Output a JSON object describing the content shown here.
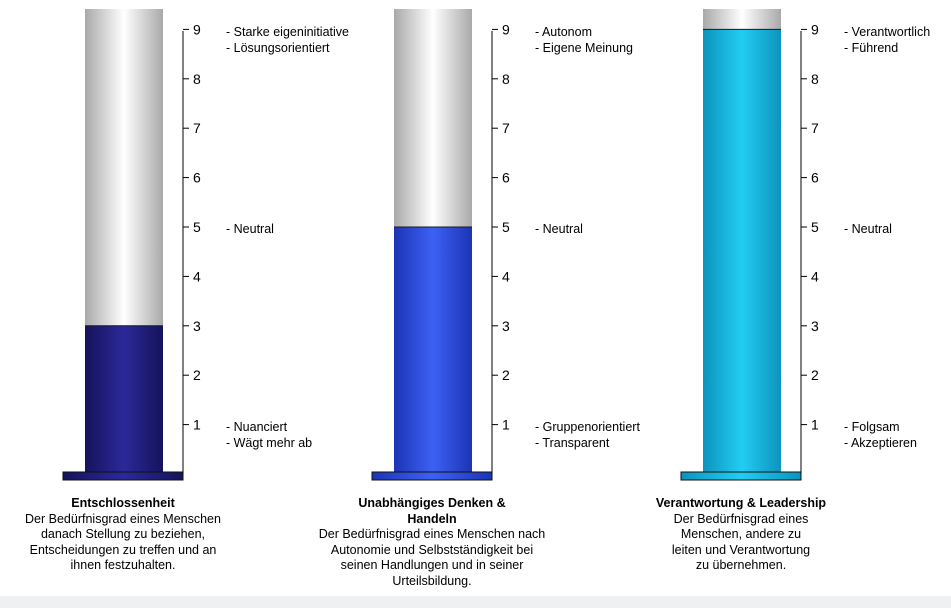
{
  "chart_data": [
    {
      "type": "bar",
      "title": "Entschlossenheit",
      "description": "Der Bedürfnisgrad eines Menschen danach Stellung zu beziehen, Entscheidungen zu treffen und an ihnen festzuhalten.",
      "value": 3,
      "ylim": [
        0,
        9
      ],
      "ticks": [
        1,
        2,
        3,
        4,
        5,
        6,
        7,
        8,
        9
      ],
      "fill_color": "#1f1d7a",
      "annotations": {
        "high": [
          "- Starke eigeninitiative",
          "- Lösungsorientiert"
        ],
        "mid": [
          "- Neutral"
        ],
        "low": [
          "- Nuanciert",
          "- Wägt mehr ab"
        ]
      }
    },
    {
      "type": "bar",
      "title": "Unabhängiges Denken & Handeln",
      "description": "Der Bedürfnisgrad eines Menschen nach Autonomie und Selbstständigkeit bei seinen Handlungen und in seiner Urteilsbildung.",
      "value": 5,
      "ylim": [
        0,
        9
      ],
      "ticks": [
        1,
        2,
        3,
        4,
        5,
        6,
        7,
        8,
        9
      ],
      "fill_color": "#2f4fe6",
      "annotations": {
        "high": [
          "- Autonom",
          "- Eigene Meinung"
        ],
        "mid": [
          "- Neutral"
        ],
        "low": [
          "- Gruppenorientiert",
          "- Transparent"
        ]
      }
    },
    {
      "type": "bar",
      "title": "Verantwortung & Leadership",
      "description": "Der Bedürfnisgrad eines Menschen, andere zu leiten und Verantwortung zu übernehmen.",
      "value": 9,
      "ylim": [
        0,
        9
      ],
      "ticks": [
        1,
        2,
        3,
        4,
        5,
        6,
        7,
        8,
        9
      ],
      "fill_color": "#17b6de",
      "annotations": {
        "high": [
          "- Verantwortlich",
          "- Führend"
        ],
        "mid": [
          "- Neutral"
        ],
        "low": [
          "- Folgsam",
          "- Akzeptieren"
        ]
      }
    }
  ]
}
